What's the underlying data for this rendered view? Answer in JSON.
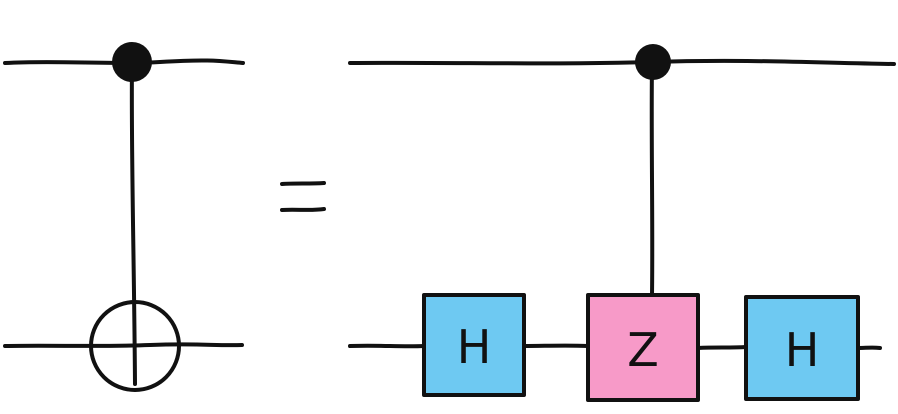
{
  "colors": {
    "ink": "#111111",
    "hadamard_fill": "#6ec9f2",
    "z_fill": "#f79ac8",
    "background": "#ffffff"
  },
  "left_circuit": {
    "gate": "controlled-not",
    "control_icon": "control-dot-icon",
    "target_icon": "xor-target-icon"
  },
  "equals": {
    "icon": "equals-sign-icon"
  },
  "right_circuit": {
    "gates": [
      {
        "id": "h1",
        "label": "H",
        "icon": "hadamard-gate-icon"
      },
      {
        "id": "cz",
        "label": "Z",
        "icon": "controlled-z-gate-icon"
      },
      {
        "id": "h2",
        "label": "H",
        "icon": "hadamard-gate-icon"
      }
    ],
    "control_icon": "control-dot-icon"
  }
}
